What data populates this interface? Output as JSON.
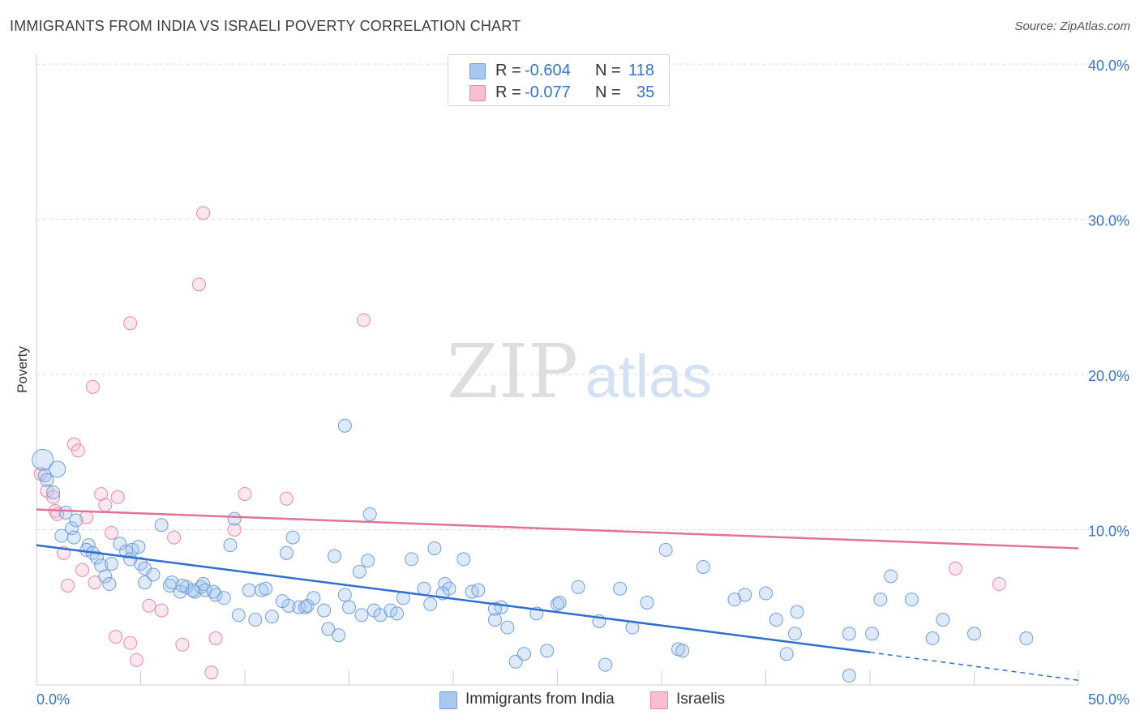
{
  "header": {
    "title": "IMMIGRANTS FROM INDIA VS ISRAELI POVERTY CORRELATION CHART",
    "source": "Source: ZipAtlas.com"
  },
  "watermark": {
    "zip": "ZIP",
    "atlas": "atlas"
  },
  "legend": {
    "r_label": "R =",
    "n_label": "N =",
    "entries": [
      {
        "r": "-0.604",
        "n": "118",
        "color": "#a9c8f0",
        "border": "#6f9fd8"
      },
      {
        "r": "-0.077",
        "n": "35",
        "color": "#f7bfd0",
        "border": "#e889a8"
      }
    ]
  },
  "colors": {
    "blue_fill": "rgba(160,195,240,0.35)",
    "blue_stroke": "#6f9fd8",
    "blue_line": "#2f6fd0",
    "pink_fill": "rgba(247,185,205,0.35)",
    "pink_stroke": "#e889a8",
    "pink_line": "#e3729b",
    "axis_text": "#3a75c4",
    "grid": "#d9d9d9"
  },
  "chart_data": {
    "type": "scatter",
    "title": "IMMIGRANTS FROM INDIA VS ISRAELI POVERTY CORRELATION CHART",
    "xlabel": "",
    "ylabel": "Poverty",
    "xlim": [
      0,
      50
    ],
    "ylim": [
      0,
      40
    ],
    "x_tick_labels": [
      "0.0%",
      "50.0%"
    ],
    "y_ticks": [
      10,
      20,
      30,
      40
    ],
    "y_tick_labels": [
      "10.0%",
      "20.0%",
      "30.0%",
      "40.0%"
    ],
    "grid": true,
    "legend_position": "top-center",
    "series": [
      {
        "name": "Immigrants from India",
        "color": "#6f9fd8",
        "r": -0.604,
        "n": 118,
        "trend": {
          "x": [
            0,
            40,
            50
          ],
          "y": [
            9.0,
            2.1,
            0.3
          ],
          "solid_until": 40
        },
        "points": [
          [
            0.3,
            14.5
          ],
          [
            0.4,
            13.5
          ],
          [
            0.5,
            13.2
          ],
          [
            1.0,
            13.9
          ],
          [
            0.8,
            12.4
          ],
          [
            1.4,
            11.1
          ],
          [
            1.7,
            10.1
          ],
          [
            1.9,
            10.6
          ],
          [
            1.2,
            9.6
          ],
          [
            1.8,
            9.5
          ],
          [
            2.5,
            9.0
          ],
          [
            2.4,
            8.7
          ],
          [
            2.7,
            8.5
          ],
          [
            2.9,
            8.2
          ],
          [
            3.1,
            7.7
          ],
          [
            3.3,
            7.0
          ],
          [
            3.6,
            7.8
          ],
          [
            4.0,
            9.1
          ],
          [
            4.3,
            8.6
          ],
          [
            4.6,
            8.7
          ],
          [
            4.9,
            8.9
          ],
          [
            5.0,
            7.8
          ],
          [
            3.5,
            6.5
          ],
          [
            4.5,
            8.1
          ],
          [
            5.2,
            7.5
          ],
          [
            5.6,
            7.1
          ],
          [
            5.2,
            6.6
          ],
          [
            6.0,
            10.3
          ],
          [
            6.4,
            6.4
          ],
          [
            6.5,
            6.6
          ],
          [
            6.9,
            6.0
          ],
          [
            7.2,
            6.3
          ],
          [
            7.0,
            6.4
          ],
          [
            7.6,
            6.0
          ],
          [
            7.9,
            6.3
          ],
          [
            8.0,
            6.5
          ],
          [
            8.1,
            6.1
          ],
          [
            8.5,
            6.0
          ],
          [
            8.6,
            5.8
          ],
          [
            9.0,
            5.6
          ],
          [
            9.3,
            9.0
          ],
          [
            9.5,
            10.7
          ],
          [
            9.7,
            4.5
          ],
          [
            10.2,
            6.1
          ],
          [
            10.5,
            4.2
          ],
          [
            10.8,
            6.1
          ],
          [
            11.0,
            6.2
          ],
          [
            11.3,
            4.4
          ],
          [
            12.0,
            8.5
          ],
          [
            12.1,
            5.1
          ],
          [
            11.8,
            5.4
          ],
          [
            12.3,
            9.5
          ],
          [
            12.6,
            5.0
          ],
          [
            12.9,
            5.0
          ],
          [
            13.0,
            5.1
          ],
          [
            13.3,
            5.6
          ],
          [
            13.8,
            4.8
          ],
          [
            14.0,
            3.6
          ],
          [
            14.3,
            8.3
          ],
          [
            14.5,
            3.2
          ],
          [
            14.8,
            5.8
          ],
          [
            15.0,
            5.0
          ],
          [
            15.5,
            7.3
          ],
          [
            15.9,
            8.0
          ],
          [
            16.2,
            4.8
          ],
          [
            16.5,
            4.5
          ],
          [
            17.0,
            4.8
          ],
          [
            17.3,
            4.6
          ],
          [
            17.6,
            5.6
          ],
          [
            18.0,
            8.1
          ],
          [
            18.6,
            6.2
          ],
          [
            18.9,
            5.2
          ],
          [
            19.1,
            8.8
          ],
          [
            19.6,
            6.5
          ],
          [
            19.8,
            6.2
          ],
          [
            20.5,
            8.1
          ],
          [
            20.9,
            6.0
          ],
          [
            21.2,
            6.1
          ],
          [
            14.8,
            16.7
          ],
          [
            15.6,
            4.5
          ],
          [
            16.0,
            11.0
          ],
          [
            22.0,
            4.2
          ],
          [
            22.3,
            5.0
          ],
          [
            22.6,
            3.7
          ],
          [
            22.0,
            4.9
          ],
          [
            23.0,
            1.5
          ],
          [
            23.4,
            2.0
          ],
          [
            24.0,
            4.6
          ],
          [
            24.5,
            2.2
          ],
          [
            25.0,
            5.2
          ],
          [
            25.1,
            5.3
          ],
          [
            26.0,
            6.3
          ],
          [
            27.0,
            4.1
          ],
          [
            27.3,
            1.3
          ],
          [
            28.0,
            6.2
          ],
          [
            28.6,
            3.7
          ],
          [
            29.3,
            5.3
          ],
          [
            30.2,
            8.7
          ],
          [
            30.8,
            2.3
          ],
          [
            31.0,
            2.2
          ],
          [
            32.0,
            7.6
          ],
          [
            33.5,
            5.5
          ],
          [
            34.0,
            5.8
          ],
          [
            35.0,
            5.9
          ],
          [
            35.5,
            4.2
          ],
          [
            36.0,
            2.0
          ],
          [
            36.5,
            4.7
          ],
          [
            36.4,
            3.3
          ],
          [
            39.0,
            3.3
          ],
          [
            40.1,
            3.3
          ],
          [
            40.5,
            5.5
          ],
          [
            41.0,
            7.0
          ],
          [
            42.0,
            5.5
          ],
          [
            43.0,
            3.0
          ],
          [
            43.5,
            4.2
          ],
          [
            45.0,
            3.3
          ],
          [
            47.5,
            3.0
          ],
          [
            39.0,
            0.6
          ],
          [
            19.5,
            5.9
          ],
          [
            7.5,
            6.1
          ]
        ]
      },
      {
        "name": "Israelis",
        "color": "#e889a8",
        "r": -0.077,
        "n": 35,
        "trend": {
          "x": [
            0,
            50
          ],
          "y": [
            11.3,
            8.8
          ]
        },
        "points": [
          [
            0.2,
            13.6
          ],
          [
            0.5,
            12.5
          ],
          [
            0.8,
            12.1
          ],
          [
            0.9,
            11.2
          ],
          [
            1.0,
            11.0
          ],
          [
            1.3,
            8.5
          ],
          [
            1.5,
            6.4
          ],
          [
            1.8,
            15.5
          ],
          [
            2.0,
            15.1
          ],
          [
            2.2,
            7.4
          ],
          [
            2.4,
            10.8
          ],
          [
            2.7,
            19.2
          ],
          [
            2.8,
            6.6
          ],
          [
            3.1,
            12.3
          ],
          [
            3.3,
            11.6
          ],
          [
            3.6,
            9.8
          ],
          [
            3.8,
            3.1
          ],
          [
            3.9,
            12.1
          ],
          [
            4.5,
            2.7
          ],
          [
            4.5,
            23.3
          ],
          [
            4.8,
            1.6
          ],
          [
            5.4,
            5.1
          ],
          [
            6.0,
            4.8
          ],
          [
            6.6,
            9.5
          ],
          [
            7.0,
            2.6
          ],
          [
            7.8,
            25.8
          ],
          [
            8.0,
            30.4
          ],
          [
            8.4,
            0.8
          ],
          [
            8.6,
            3.0
          ],
          [
            9.5,
            10.0
          ],
          [
            10.0,
            12.3
          ],
          [
            12.0,
            12.0
          ],
          [
            15.7,
            23.5
          ],
          [
            44.1,
            7.5
          ],
          [
            46.2,
            6.5
          ]
        ]
      }
    ]
  },
  "bottom_legend": {
    "items": [
      {
        "label": "Immigrants from India",
        "color": "#a9c8f0",
        "border": "#6f9fd8"
      },
      {
        "label": "Israelis",
        "color": "#f7bfd0",
        "border": "#e889a8"
      }
    ]
  }
}
